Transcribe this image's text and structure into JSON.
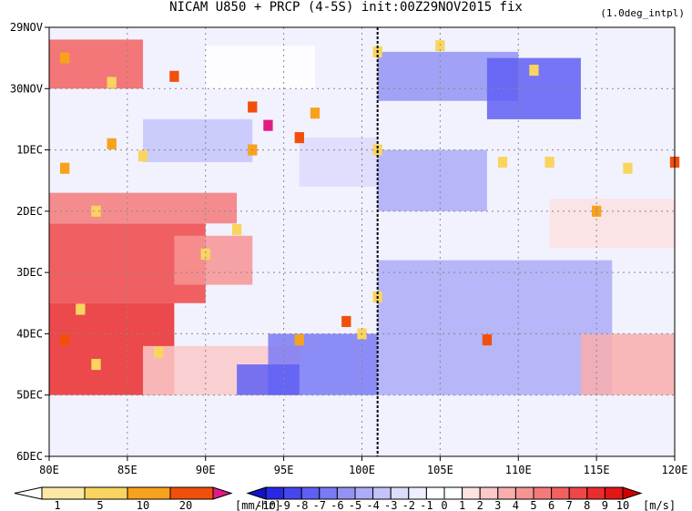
{
  "chart_data": {
    "type": "heatmap",
    "title": "NICAM  U850 + PRCP (4-5S) init:00Z29NOV2015 fix",
    "note": "(1.0deg_intpl)",
    "xlabel": "",
    "ylabel": "",
    "x_ticks": [
      "80E",
      "85E",
      "90E",
      "95E",
      "100E",
      "105E",
      "110E",
      "115E",
      "120E"
    ],
    "x_range": [
      80,
      120
    ],
    "y_ticks": [
      "29NOV",
      "30NOV",
      "1DEC",
      "2DEC",
      "3DEC",
      "4DEC",
      "5DEC",
      "6DEC"
    ],
    "y_range_days": [
      0,
      7
    ],
    "grid": true,
    "marker_line_lon": 101,
    "prcp_legend": {
      "labels": [
        "1",
        "5",
        "10",
        "20"
      ],
      "unit": "[mm/hr]",
      "colors": [
        "#ffffff",
        "#fbe9a3",
        "#f9d55f",
        "#f7a21d",
        "#f24f0a",
        "#e01b84"
      ]
    },
    "u850_legend": {
      "labels": [
        "-10",
        "-9",
        "-8",
        "-7",
        "-6",
        "-5",
        "-4",
        "-3",
        "-2",
        "-1",
        "0",
        "1",
        "2",
        "3",
        "4",
        "5",
        "6",
        "7",
        "8",
        "9",
        "10"
      ],
      "unit": "[m/s]",
      "colors": [
        "#1212c8",
        "#2828e6",
        "#4646f0",
        "#5f5ff5",
        "#7a7af5",
        "#9393f5",
        "#acacf8",
        "#c4c4fb",
        "#dcdcfd",
        "#eeeefe",
        "#ffffff",
        "#ffffff",
        "#fde2e2",
        "#fbc9c9",
        "#f9aeae",
        "#f79494",
        "#f57a7a",
        "#f36060",
        "#f04646",
        "#ea2c2c",
        "#e31515",
        "#d00000"
      ]
    },
    "u850_regions": [
      {
        "lon0": 80,
        "lon1": 86,
        "d0": 0.2,
        "d1": 1.0,
        "u": 6
      },
      {
        "lon0": 80,
        "lon1": 90,
        "d0": 3.2,
        "d1": 4.5,
        "u": 7
      },
      {
        "lon0": 80,
        "lon1": 88,
        "d0": 4.5,
        "d1": 6.0,
        "u": 8
      },
      {
        "lon0": 80,
        "lon1": 92,
        "d0": 2.7,
        "d1": 3.2,
        "u": 5
      },
      {
        "lon0": 88,
        "lon1": 93,
        "d0": 3.4,
        "d1": 4.2,
        "u": 4
      },
      {
        "lon0": 86,
        "lon1": 96,
        "d0": 5.2,
        "d1": 6.0,
        "u": 2
      },
      {
        "lon0": 94,
        "lon1": 101,
        "d0": 5.0,
        "d1": 6.0,
        "u": -7
      },
      {
        "lon0": 92,
        "lon1": 96,
        "d0": 5.5,
        "d1": 6.0,
        "u": -8
      },
      {
        "lon0": 101,
        "lon1": 110,
        "d0": 0.4,
        "d1": 1.2,
        "u": -6
      },
      {
        "lon0": 108,
        "lon1": 114,
        "d0": 0.5,
        "d1": 1.5,
        "u": -8
      },
      {
        "lon0": 101,
        "lon1": 116,
        "d0": 3.8,
        "d1": 6.0,
        "u": -5
      },
      {
        "lon0": 101,
        "lon1": 108,
        "d0": 2.0,
        "d1": 3.0,
        "u": -5
      },
      {
        "lon0": 112,
        "lon1": 120,
        "d0": 2.8,
        "d1": 3.6,
        "u": 1
      },
      {
        "lon0": 114,
        "lon1": 120,
        "d0": 5.0,
        "d1": 6.0,
        "u": 3
      },
      {
        "lon0": 86,
        "lon1": 93,
        "d0": 1.5,
        "d1": 2.2,
        "u": -4
      },
      {
        "lon0": 90,
        "lon1": 97,
        "d0": 0.3,
        "d1": 1.0,
        "u": 0
      },
      {
        "lon0": 96,
        "lon1": 101,
        "d0": 1.8,
        "d1": 2.6,
        "u": -3
      }
    ],
    "prcp_cells": [
      {
        "lon": 81,
        "day": 0.5,
        "p": 5
      },
      {
        "lon": 84,
        "day": 0.9,
        "p": 3
      },
      {
        "lon": 88,
        "day": 0.8,
        "p": 10
      },
      {
        "lon": 93,
        "day": 1.3,
        "p": 10
      },
      {
        "lon": 94,
        "day": 1.6,
        "p": 20
      },
      {
        "lon": 96,
        "day": 1.8,
        "p": 12
      },
      {
        "lon": 97,
        "day": 1.4,
        "p": 8
      },
      {
        "lon": 84,
        "day": 1.9,
        "p": 6
      },
      {
        "lon": 86,
        "day": 2.1,
        "p": 4
      },
      {
        "lon": 81,
        "day": 2.3,
        "p": 5
      },
      {
        "lon": 93,
        "day": 2.0,
        "p": 8
      },
      {
        "lon": 101,
        "day": 2.0,
        "p": 3
      },
      {
        "lon": 101,
        "day": 0.4,
        "p": 4
      },
      {
        "lon": 83,
        "day": 3.0,
        "p": 3
      },
      {
        "lon": 92,
        "day": 3.3,
        "p": 3
      },
      {
        "lon": 101,
        "day": 4.4,
        "p": 4
      },
      {
        "lon": 99,
        "day": 4.8,
        "p": 10
      },
      {
        "lon": 100,
        "day": 5.0,
        "p": 3
      },
      {
        "lon": 96,
        "day": 5.1,
        "p": 5
      },
      {
        "lon": 81,
        "day": 5.1,
        "p": 10
      },
      {
        "lon": 82,
        "day": 4.6,
        "p": 4
      },
      {
        "lon": 83,
        "day": 5.5,
        "p": 3
      },
      {
        "lon": 87,
        "day": 5.3,
        "p": 3
      },
      {
        "lon": 108,
        "day": 5.1,
        "p": 10
      },
      {
        "lon": 120,
        "day": 2.2,
        "p": 10
      },
      {
        "lon": 115,
        "day": 3.0,
        "p": 5
      },
      {
        "lon": 109,
        "day": 2.2,
        "p": 3
      },
      {
        "lon": 112,
        "day": 2.2,
        "p": 3
      },
      {
        "lon": 105,
        "day": 0.3,
        "p": 3
      },
      {
        "lon": 111,
        "day": 0.7,
        "p": 3
      },
      {
        "lon": 117,
        "day": 2.3,
        "p": 3
      },
      {
        "lon": 90,
        "day": 3.7,
        "p": 3
      }
    ]
  }
}
